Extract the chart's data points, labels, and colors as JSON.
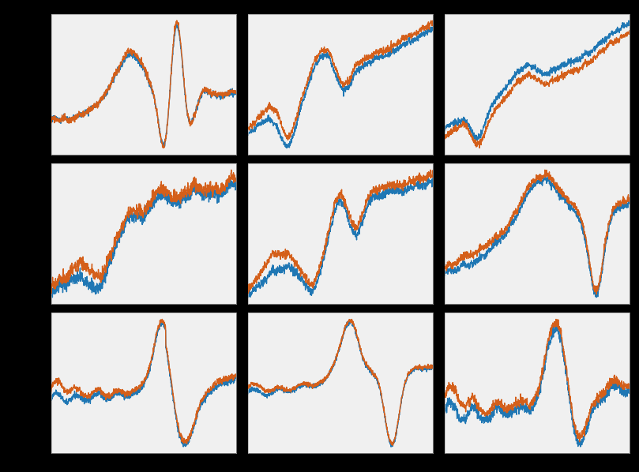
{
  "n_rows": 3,
  "n_cols": 3,
  "figsize": [
    8.09,
    5.98
  ],
  "dpi": 100,
  "background_color": "#000000",
  "subplot_bg_color": "#f0f0f0",
  "grid_color": "#c8c8c8",
  "line1_color": "#1f77b4",
  "line2_color": "#d45f1a",
  "line_width": 1.0,
  "n_points": 1000
}
